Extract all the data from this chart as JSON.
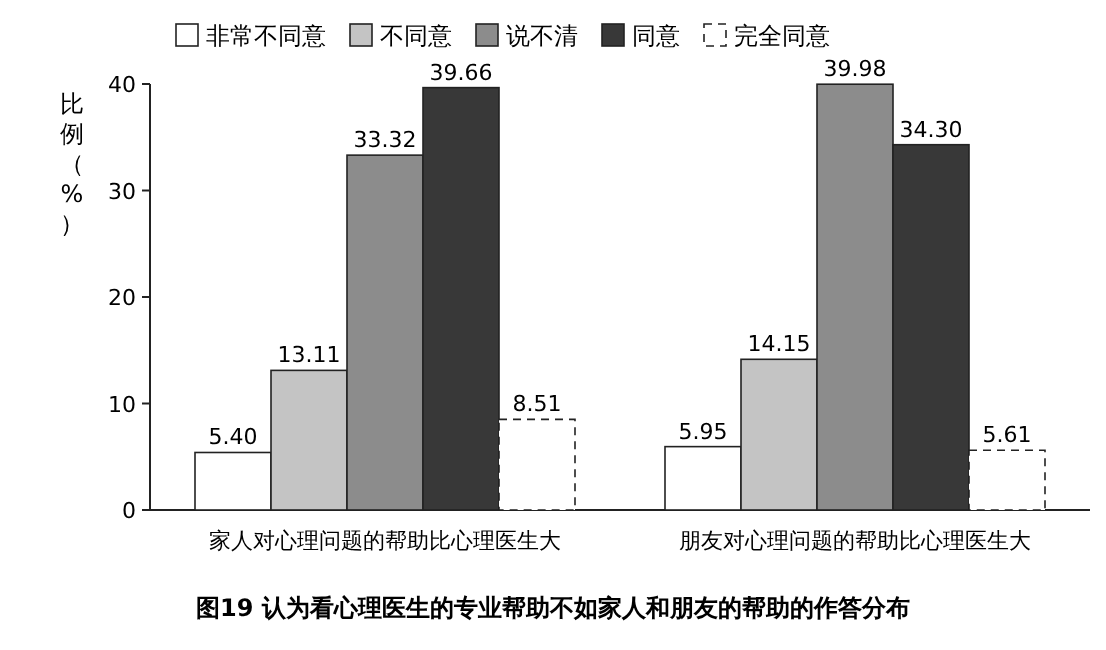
{
  "chart_data": {
    "type": "bar",
    "title": "图19  认为看心理医生的专业帮助不如家人和朋友的帮助的作答分布",
    "ylabel": "比例（%）",
    "categories": [
      "家人对心理问题的帮助比心理医生大",
      "朋友对心理问题的帮助比心理医生大"
    ],
    "series": [
      {
        "name": "非常不同意",
        "color": "#ffffff",
        "values": [
          5.4,
          5.95
        ],
        "value_labels": [
          "5.40",
          "5.95"
        ]
      },
      {
        "name": "不同意",
        "color": "#c4c4c4",
        "values": [
          13.11,
          14.15
        ],
        "value_labels": [
          "13.11",
          "14.15"
        ]
      },
      {
        "name": "说不清",
        "color": "#8c8c8c",
        "values": [
          33.32,
          39.98
        ],
        "value_labels": [
          "33.32",
          "39.98"
        ]
      },
      {
        "name": "同意",
        "color": "#383838",
        "values": [
          39.66,
          34.3
        ],
        "value_labels": [
          "39.66",
          "34.30"
        ]
      },
      {
        "name": "完全同意",
        "color": "#ffffff",
        "line_style": "dashed",
        "values": [
          8.51,
          5.61
        ],
        "value_labels": [
          "8.51",
          "5.61"
        ]
      }
    ],
    "ylim": [
      0,
      40
    ],
    "yticks": [
      0,
      10,
      20,
      30,
      40
    ],
    "legend": "top"
  }
}
